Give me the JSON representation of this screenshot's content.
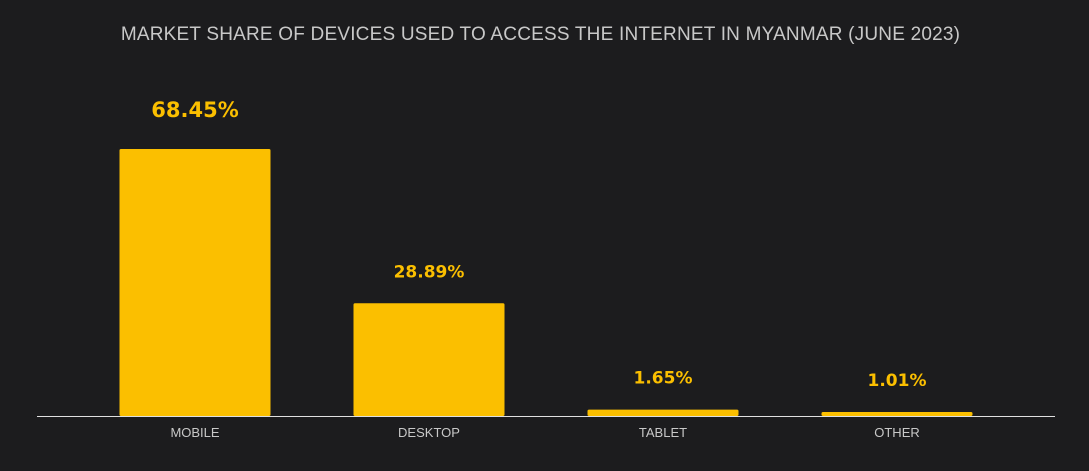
{
  "colors": {
    "background": "#1c1c1e",
    "bar": "#fbbf00",
    "title": "#c8c8c8",
    "tick": "#c8c8c8",
    "axis": "#e0e0e0"
  },
  "chart_data": {
    "type": "bar",
    "title": "MARKET SHARE OF DEVICES USED TO ACCESS THE INTERNET IN MYANMAR (JUNE 2023)",
    "xlabel": "",
    "ylabel": "",
    "categories": [
      "MOBILE",
      "DESKTOP",
      "TABLET",
      "OTHER"
    ],
    "values": [
      68.45,
      28.89,
      1.65,
      1.01
    ],
    "value_labels": [
      "68.45%",
      "28.89%",
      "1.65%",
      "1.01%"
    ],
    "ylim": [
      0,
      68.45
    ],
    "grid": false,
    "legend": "none"
  }
}
